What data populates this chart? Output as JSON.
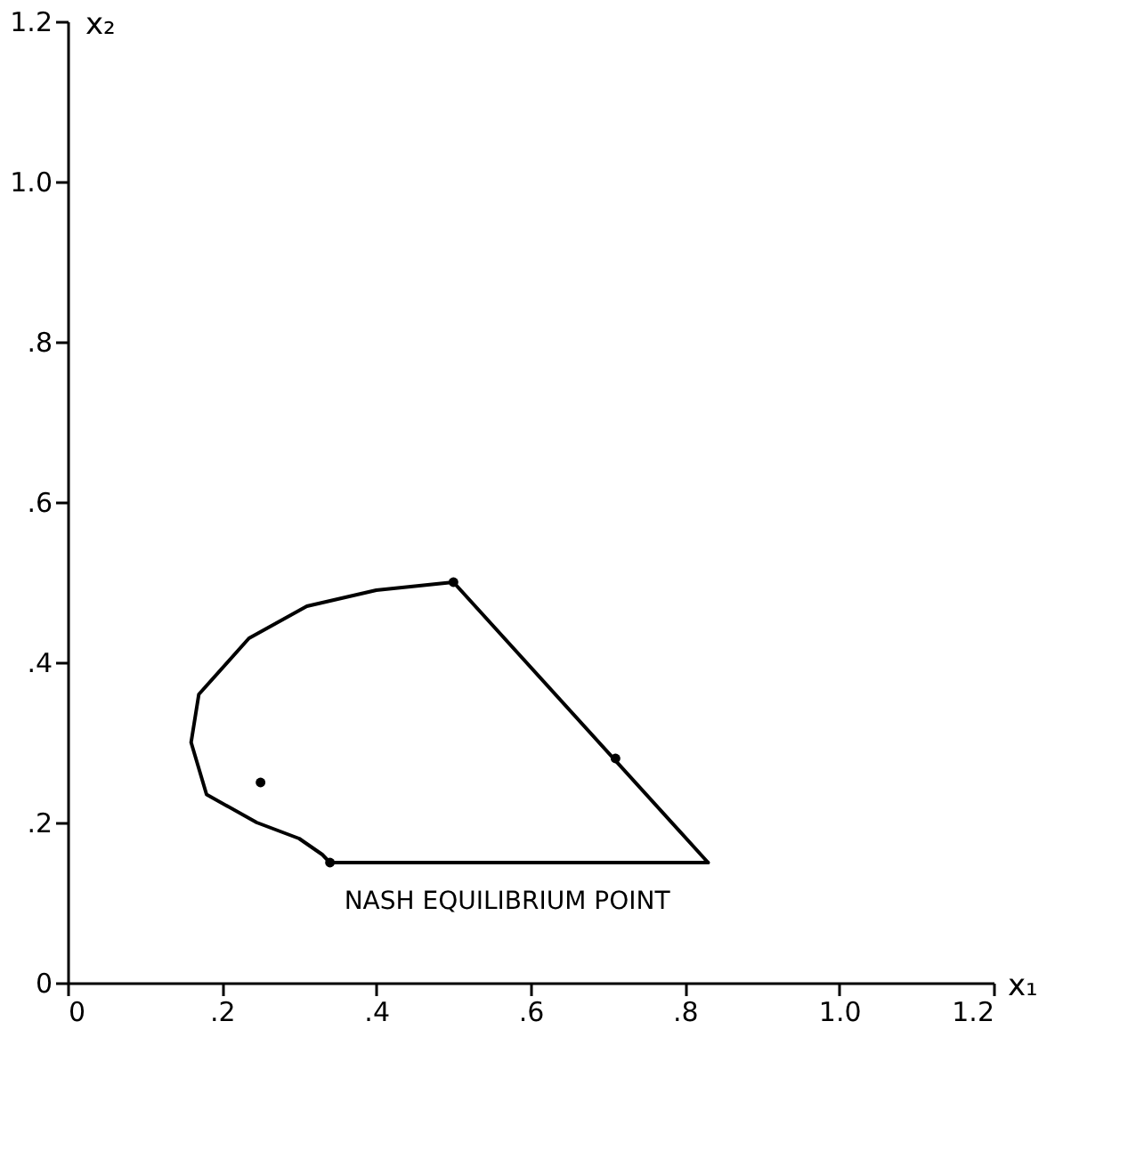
{
  "chart_data": {
    "type": "line",
    "xlabel": "x₁",
    "ylabel": "x₂",
    "xlim": [
      0,
      1.2
    ],
    "ylim": [
      0,
      1.2
    ],
    "xticks": [
      0,
      {
        "value": 0.2,
        "label": ".2"
      },
      {
        "value": 0.4,
        "label": ".4"
      },
      {
        "value": 0.6,
        "label": ".6"
      },
      {
        "value": 0.8,
        "label": ".8"
      },
      {
        "value": 1.0,
        "label": "1.0"
      },
      {
        "value": 1.2,
        "label": "1.2"
      }
    ],
    "yticks": [
      0,
      {
        "value": 0.2,
        "label": ".2"
      },
      {
        "value": 0.4,
        "label": ".4"
      },
      {
        "value": 0.6,
        "label": ".6"
      },
      {
        "value": 0.8,
        "label": ".8"
      },
      {
        "value": 1.0,
        "label": "1.0"
      },
      {
        "value": 1.2,
        "label": "1.2"
      }
    ],
    "grid": false,
    "marker": "none",
    "line_style": "solid",
    "series": [
      {
        "color": "#000000",
        "x": [
          0.34,
          0.83
        ],
        "values": [
          0.15,
          0.15
        ]
      },
      {
        "color": "#000000",
        "x": [
          0.5,
          0.83
        ],
        "values": [
          0.5,
          0.15
        ]
      },
      {
        "color": "#000000",
        "x": [
          0.5,
          0.4,
          0.31,
          0.235,
          0.17,
          0.16,
          0.18,
          0.245,
          0.3,
          0.33,
          0.34
        ],
        "values": [
          0.5,
          0.49,
          0.47,
          0.43,
          0.36,
          0.3,
          0.235,
          0.2,
          0.18,
          0.16,
          0.15
        ]
      },
      {
        "type": "scatter",
        "color": "#000000",
        "marker": "circle",
        "x": [
          0.34,
          0.5,
          0.71,
          0.25
        ],
        "values": [
          0.15,
          0.5,
          0.28,
          0.25
        ]
      }
    ],
    "annotations": [
      {
        "text": "NASH EQUILIBRIUM POINT",
        "x": 0.34,
        "y": 0.15
      }
    ]
  }
}
